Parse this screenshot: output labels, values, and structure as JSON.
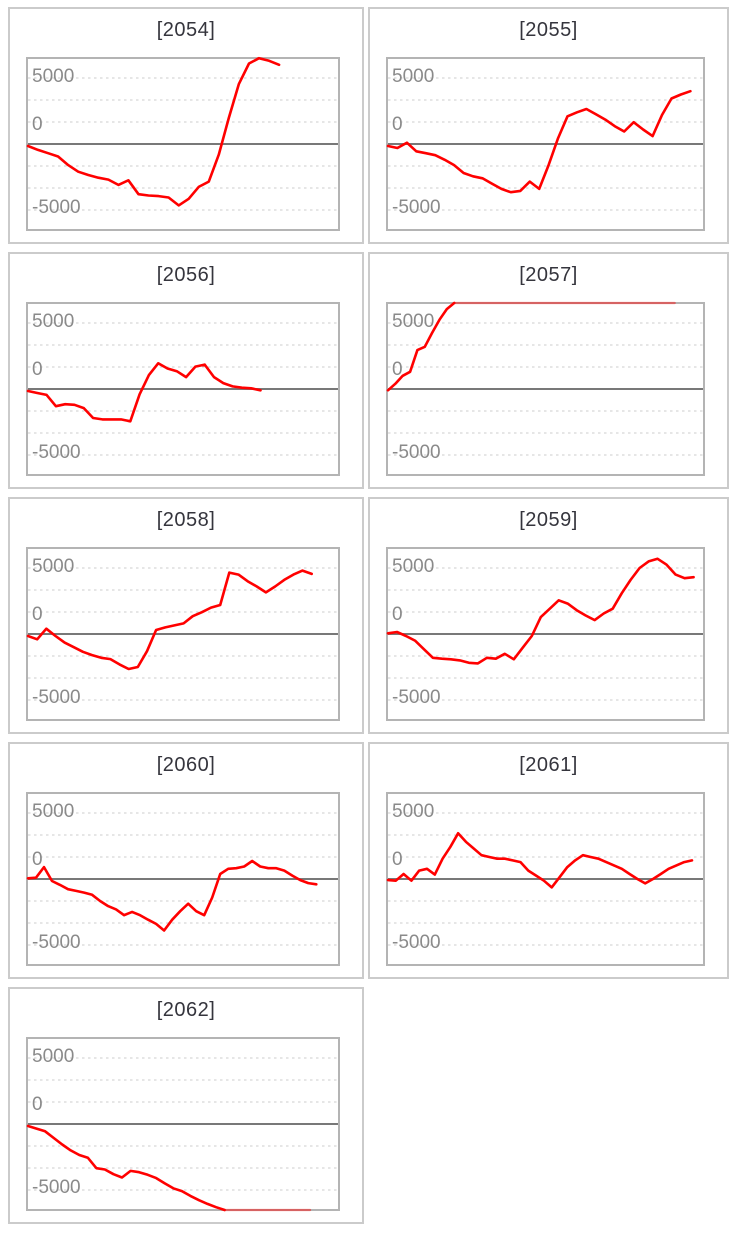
{
  "page": {
    "background": "#ffffff"
  },
  "axis": {
    "ymin": -6667,
    "ymax": 6667,
    "grid_interval": 1667,
    "zero_line_value": 0,
    "ticks": [
      {
        "label": "5000",
        "value": 5000
      },
      {
        "label": "0",
        "value": 0
      },
      {
        "label": "-5000",
        "value": -5000
      }
    ]
  },
  "colors": {
    "series_line": "#ff0000",
    "clipped_line_opacity": 0.45,
    "zero_line": "#787878",
    "gridline": "#cdcdcd",
    "plot_border": "#b4b4b4",
    "panel_border": "#cbcbcb",
    "tick_label": "#8a8a8a",
    "title_text": "#35353d"
  },
  "chart_data": [
    {
      "type": "line",
      "title": "[2054]",
      "end_frac": 0.81,
      "values": [
        -150,
        -450,
        -700,
        -950,
        -1600,
        -2100,
        -2350,
        -2550,
        -2700,
        -3100,
        -2750,
        -3800,
        -3900,
        -3950,
        -4050,
        -4650,
        -4150,
        -3250,
        -2850,
        -800,
        2000,
        4550,
        6100,
        6500,
        6300,
        6000
      ]
    },
    {
      "type": "line",
      "title": "[2055]",
      "end_frac": 0.96,
      "values": [
        -150,
        -300,
        100,
        -550,
        -700,
        -850,
        -1200,
        -1600,
        -2200,
        -2450,
        -2600,
        -3000,
        -3400,
        -3650,
        -3550,
        -2850,
        -3400,
        -1600,
        450,
        2100,
        2400,
        2650,
        2250,
        1850,
        1350,
        950,
        1650,
        1100,
        600,
        2200,
        3450,
        3750,
        4000
      ]
    },
    {
      "type": "line",
      "title": "[2056]",
      "end_frac": 0.75,
      "values": [
        -150,
        -300,
        -450,
        -1300,
        -1150,
        -1200,
        -1450,
        -2200,
        -2300,
        -2300,
        -2300,
        -2450,
        -400,
        1050,
        1950,
        1550,
        1350,
        900,
        1700,
        1850,
        900,
        450,
        200,
        100,
        50,
        -100
      ]
    },
    {
      "type": "line",
      "title": "[2057]",
      "end_frac": 0.91,
      "values": [
        -100,
        400,
        1000,
        1300,
        2950,
        3200,
        4250,
        5250,
        6050,
        6550,
        6850,
        6850,
        6850,
        6850,
        6850,
        6850,
        6850,
        6850,
        6850,
        6850,
        6850,
        6850,
        6850,
        6850,
        6850,
        6850,
        6850,
        6850,
        6850,
        6850,
        6850,
        6850,
        6850,
        6850,
        6850,
        6850,
        6850,
        6850,
        6850,
        6850
      ]
    },
    {
      "type": "line",
      "title": "[2058]",
      "end_frac": 0.915,
      "values": [
        -150,
        -400,
        400,
        -150,
        -650,
        -1000,
        -1350,
        -1600,
        -1800,
        -1900,
        -2300,
        -2650,
        -2500,
        -1300,
        300,
        500,
        650,
        800,
        1350,
        1650,
        2000,
        2200,
        4650,
        4500,
        4000,
        3600,
        3150,
        3600,
        4100,
        4500,
        4800,
        4550
      ]
    },
    {
      "type": "line",
      "title": "[2059]",
      "end_frac": 0.97,
      "values": [
        50,
        150,
        -150,
        -500,
        -1150,
        -1800,
        -1870,
        -1920,
        -2000,
        -2180,
        -2230,
        -1800,
        -1870,
        -1500,
        -1920,
        -1030,
        -150,
        1280,
        1920,
        2550,
        2300,
        1800,
        1400,
        1050,
        1550,
        1920,
        3080,
        4100,
        5000,
        5500,
        5700,
        5250,
        4500,
        4230,
        4300
      ]
    },
    {
      "type": "line",
      "title": "[2060]",
      "end_frac": 0.93,
      "values": [
        50,
        100,
        900,
        -150,
        -450,
        -770,
        -900,
        -1030,
        -1200,
        -1670,
        -2050,
        -2300,
        -2740,
        -2490,
        -2740,
        -3080,
        -3400,
        -3900,
        -3080,
        -2440,
        -1870,
        -2440,
        -2740,
        -1400,
        380,
        770,
        820,
        950,
        1360,
        950,
        820,
        820,
        640,
        260,
        -80,
        -310,
        -400
      ]
    },
    {
      "type": "line",
      "title": "[2061]",
      "end_frac": 0.965,
      "values": [
        -80,
        -130,
        380,
        -130,
        640,
        770,
        330,
        1540,
        2440,
        3460,
        2820,
        2310,
        1800,
        1670,
        1540,
        1540,
        1410,
        1280,
        640,
        260,
        -130,
        -640,
        130,
        900,
        1410,
        1800,
        1670,
        1540,
        1280,
        1030,
        770,
        380,
        0,
        -330,
        0,
        380,
        770,
        1030,
        1280,
        1410
      ]
    },
    {
      "type": "line",
      "title": "[2062]",
      "end_frac": 0.91,
      "values": [
        -150,
        -350,
        -550,
        -1050,
        -1550,
        -2000,
        -2350,
        -2550,
        -3350,
        -3450,
        -3800,
        -4050,
        -3550,
        -3650,
        -3850,
        -4100,
        -4500,
        -4870,
        -5080,
        -5450,
        -5770,
        -6050,
        -6300,
        -6600,
        -6800,
        -6800,
        -6800,
        -6800,
        -6800,
        -6800,
        -6800,
        -6800,
        -6800,
        -6800
      ]
    }
  ]
}
